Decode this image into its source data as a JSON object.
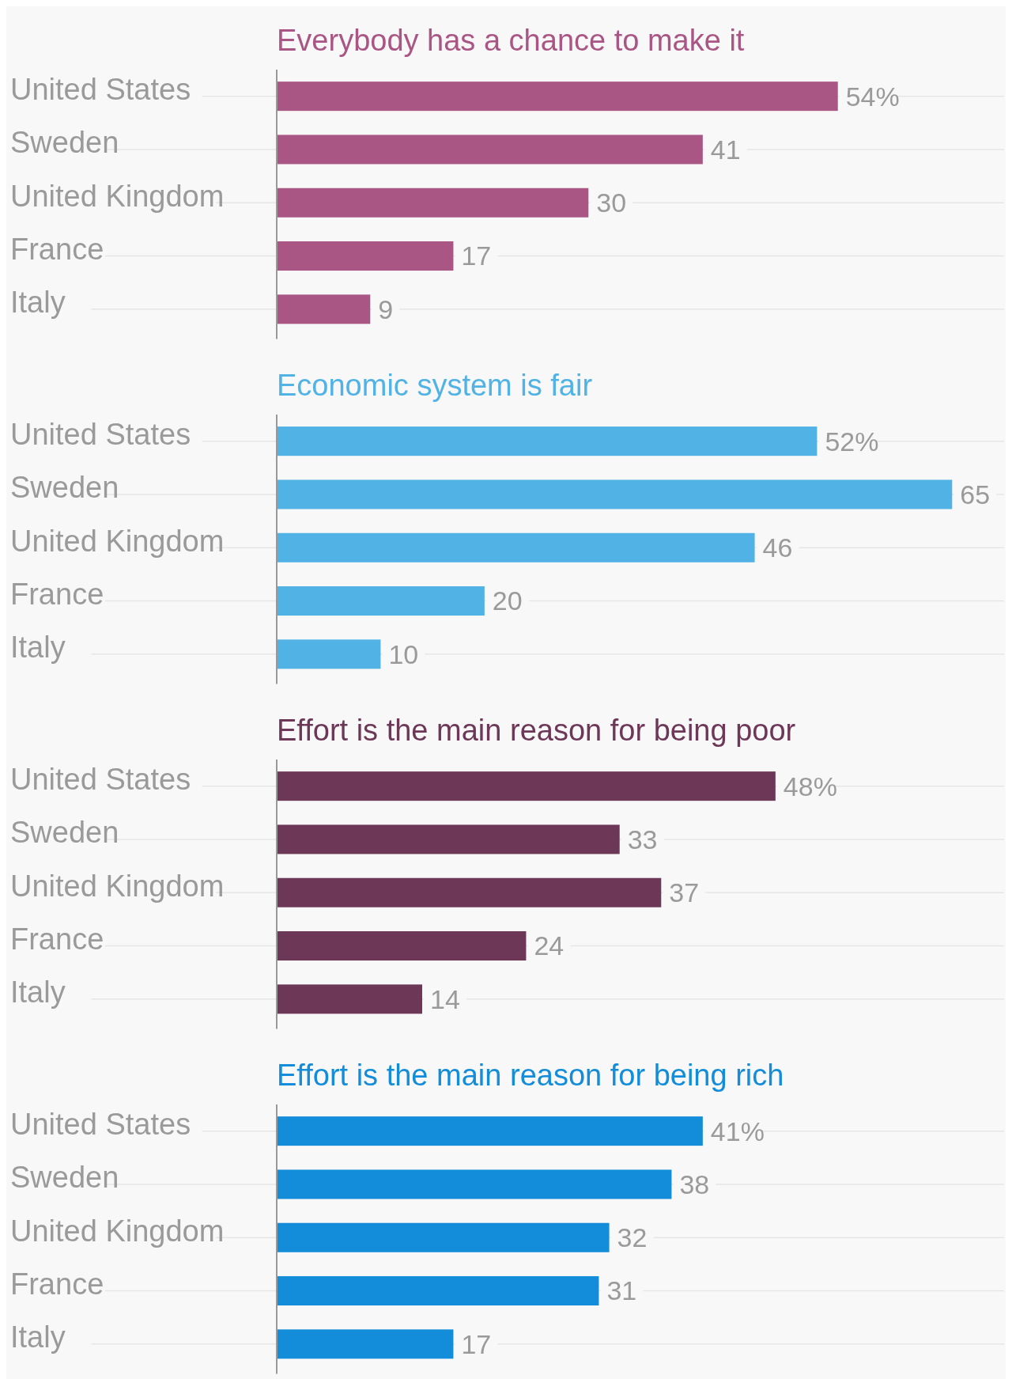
{
  "chart_data": [
    {
      "type": "bar",
      "orientation": "horizontal",
      "title": "Everybody has a chance to make it",
      "categories": [
        "United States",
        "Sweden",
        "United Kingdom",
        "France",
        "Italy"
      ],
      "values": [
        54,
        41,
        30,
        17,
        9
      ],
      "value_labels": [
        "54%",
        "41",
        "30",
        "17",
        "9"
      ],
      "color": "#aa5685",
      "xlim": [
        0,
        70
      ],
      "grid": "y",
      "tick_labels": "y"
    },
    {
      "type": "bar",
      "orientation": "horizontal",
      "title": "Economic system is fair",
      "categories": [
        "United States",
        "Sweden",
        "United Kingdom",
        "France",
        "Italy"
      ],
      "values": [
        52,
        65,
        46,
        20,
        10
      ],
      "value_labels": [
        "52%",
        "65",
        "46",
        "20",
        "10"
      ],
      "color": "#50b2e5",
      "xlim": [
        0,
        70
      ],
      "grid": "y",
      "tick_labels": "y"
    },
    {
      "type": "bar",
      "orientation": "horizontal",
      "title": "Effort is the main reason for being poor",
      "categories": [
        "United States",
        "Sweden",
        "United Kingdom",
        "France",
        "Italy"
      ],
      "values": [
        48,
        33,
        37,
        24,
        14
      ],
      "value_labels": [
        "48%",
        "33",
        "37",
        "24",
        "14"
      ],
      "color": "#6d3858",
      "xlim": [
        0,
        70
      ],
      "grid": "y",
      "tick_labels": "y"
    },
    {
      "type": "bar",
      "orientation": "horizontal",
      "title": "Effort is the main reason for being rich",
      "categories": [
        "United States",
        "Sweden",
        "United Kingdom",
        "France",
        "Italy"
      ],
      "values": [
        41,
        38,
        32,
        31,
        17
      ],
      "value_labels": [
        "41%",
        "38",
        "32",
        "31",
        "17"
      ],
      "color": "#138dd9",
      "xlim": [
        0,
        70
      ],
      "grid": "y",
      "tick_labels": "y"
    }
  ]
}
